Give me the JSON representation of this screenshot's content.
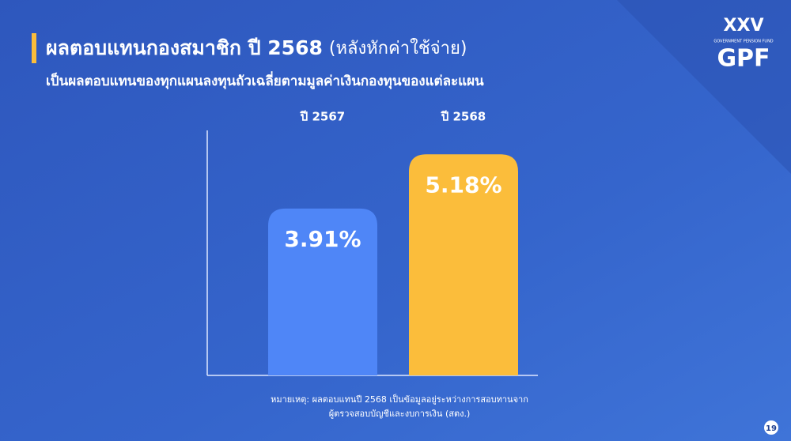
{
  "chart_data": {
    "type": "bar",
    "title": "ผลตอบแทนกองสมาชิก ปี 2568",
    "title_note": "(หลังหักค่าใช้จ่าย)",
    "subtitle": "เป็นผลตอบแทนของทุกแผนลงทุนถัวเฉลี่ยตามมูลค่าเงินกองทุนของแต่ละแผน",
    "categories": [
      "ปี 2567",
      "ปี 2568"
    ],
    "values": [
      3.91,
      5.18
    ],
    "value_labels": [
      "3.91%",
      "5.18%"
    ],
    "colors": [
      "#4f86f7",
      "#fbbd3b"
    ],
    "footnote": [
      "หมายเหตุ: ผลตอบแทนปี 2568 เป็นข้อมูลอยู่ระหว่างการสอบทานจาก",
      "ผู้ตรวจสอบบัญชีและงบการเงิน (สตง.)"
    ]
  },
  "logo": {
    "mark": "XXV",
    "tagline": "GOVERNMENT PENSION FUND",
    "name": "GPF"
  },
  "page_number": "19"
}
